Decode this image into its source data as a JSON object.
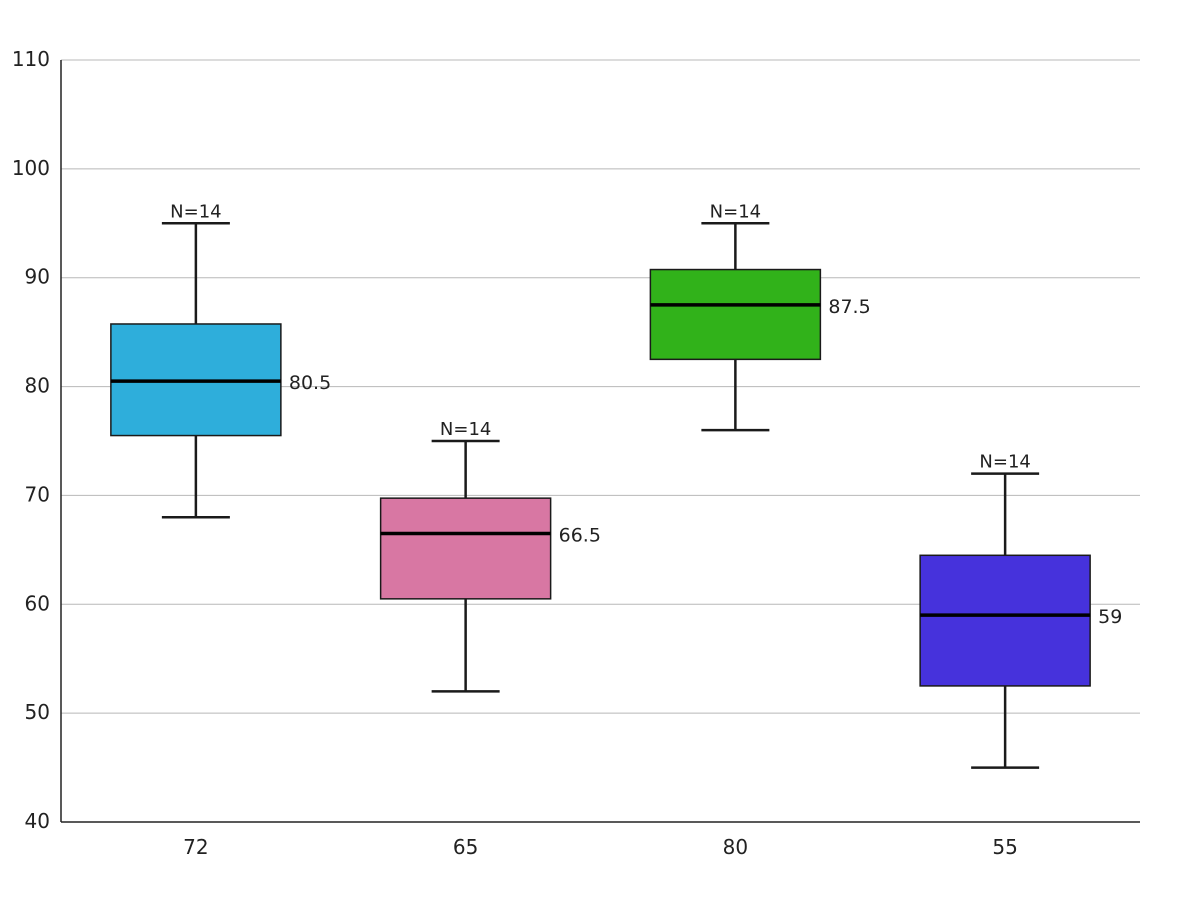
{
  "chart_data": {
    "type": "box",
    "title": "",
    "xlabel": "",
    "ylabel": "",
    "ylim": [
      40,
      110
    ],
    "yticks": [
      "40",
      "50",
      "60",
      "70",
      "80",
      "90",
      "100",
      "110"
    ],
    "grid": true,
    "categories": [
      "72",
      "65",
      "80",
      "55"
    ],
    "boxes": [
      {
        "category": "72",
        "whisker_low": 68,
        "q1": 75.5,
        "median": 80.5,
        "q3": 85.75,
        "whisker_high": 95,
        "median_label": "80.5",
        "n_label": "N=14",
        "color": "#2eaedb"
      },
      {
        "category": "65",
        "whisker_low": 52,
        "q1": 60.5,
        "median": 66.5,
        "q3": 69.75,
        "whisker_high": 75,
        "median_label": "66.5",
        "n_label": "N=14",
        "color": "#d877a3"
      },
      {
        "category": "80",
        "whisker_low": 76,
        "q1": 82.5,
        "median": 87.5,
        "q3": 90.75,
        "whisker_high": 95,
        "median_label": "87.5",
        "n_label": "N=14",
        "color": "#31b21a"
      },
      {
        "category": "55",
        "whisker_low": 45,
        "q1": 52.5,
        "median": 59,
        "q3": 64.5,
        "whisker_high": 72,
        "median_label": "59",
        "n_label": "N=14",
        "color": "#4632dc"
      }
    ]
  }
}
